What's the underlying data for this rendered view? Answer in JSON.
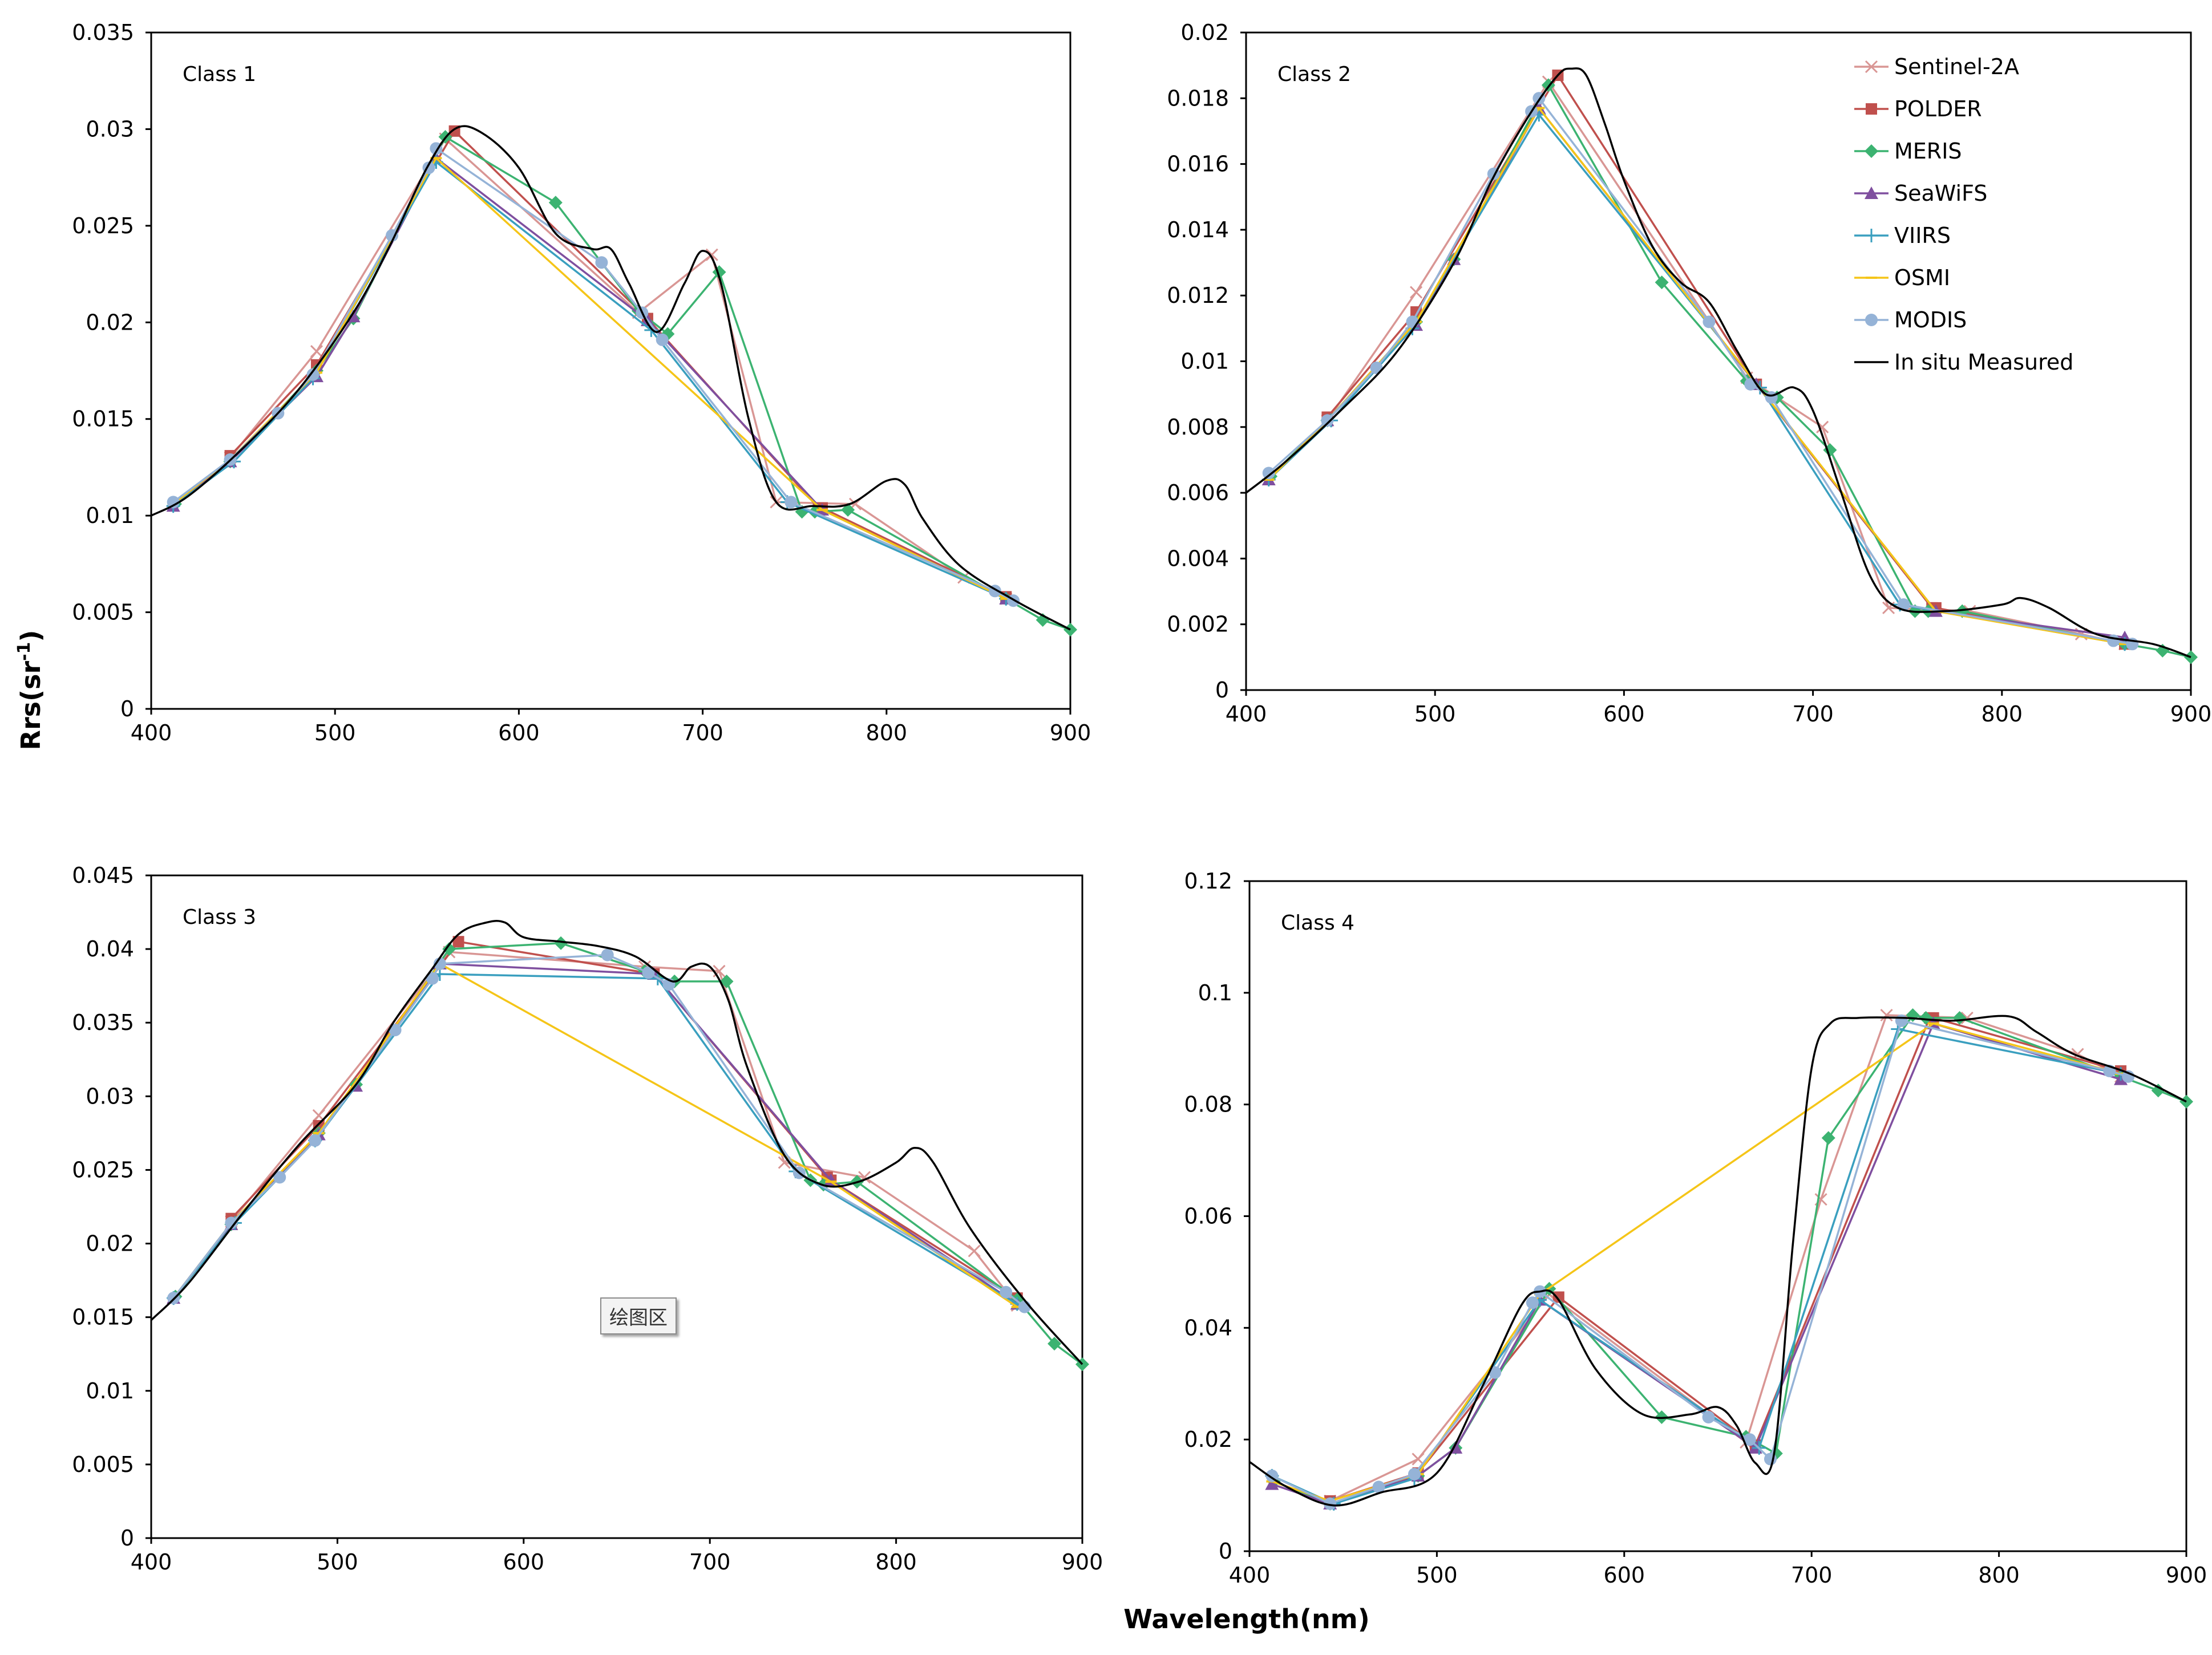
{
  "chart_data": [
    {
      "type": "line",
      "title": "Class 1",
      "xlim": [
        400,
        900
      ],
      "ylim": [
        0,
        0.035
      ],
      "xticks": [
        "400",
        "500",
        "600",
        "700",
        "800",
        "900"
      ],
      "yticks": [
        "0",
        "0.005",
        "0.01",
        "0.015",
        "0.02",
        "0.025",
        "0.03",
        "0.035"
      ],
      "series": [
        {
          "name": "Sentinel-2A",
          "x": [
            443,
            490,
            560,
            665,
            705,
            740,
            783,
            842,
            865
          ],
          "y": [
            0.013,
            0.0185,
            0.0295,
            0.0205,
            0.0235,
            0.0107,
            0.0106,
            0.0068,
            0.0057
          ]
        },
        {
          "name": "POLDER",
          "x": [
            443,
            490,
            565,
            670,
            763,
            765,
            865
          ],
          "y": [
            0.0131,
            0.0178,
            0.0299,
            0.0202,
            0.0104,
            0.0104,
            0.0058
          ]
        },
        {
          "name": "MERIS",
          "x": [
            413,
            443,
            490,
            510,
            560,
            620,
            665,
            681,
            709,
            754,
            761,
            779,
            865,
            885,
            900
          ],
          "y": [
            0.0106,
            0.0128,
            0.0175,
            0.0202,
            0.0296,
            0.0262,
            0.0206,
            0.0194,
            0.0226,
            0.0102,
            0.0102,
            0.0103,
            0.0057,
            0.0046,
            0.0041
          ]
        },
        {
          "name": "SeaWiFS",
          "x": [
            412,
            443,
            490,
            510,
            555,
            670,
            765,
            865
          ],
          "y": [
            0.0105,
            0.0128,
            0.0172,
            0.0203,
            0.0285,
            0.0201,
            0.0103,
            0.0057
          ]
        },
        {
          "name": "VIIRS",
          "x": [
            412,
            445,
            488,
            555,
            672,
            746,
            865
          ],
          "y": [
            0.0105,
            0.0128,
            0.0171,
            0.0283,
            0.0196,
            0.0107,
            0.0057
          ]
        },
        {
          "name": "OSMI",
          "x": [
            412,
            443,
            490,
            555,
            765,
            865
          ],
          "y": [
            0.0106,
            0.0129,
            0.0174,
            0.0285,
            0.0103,
            0.0057
          ]
        },
        {
          "name": "MODIS",
          "x": [
            412,
            443,
            469,
            488,
            531,
            551,
            555,
            645,
            667,
            678,
            748,
            859,
            869
          ],
          "y": [
            0.0107,
            0.0129,
            0.0153,
            0.0173,
            0.0245,
            0.028,
            0.029,
            0.0231,
            0.0205,
            0.0191,
            0.0107,
            0.0061,
            0.0056
          ]
        },
        {
          "name": "In situ Measured",
          "x": [
            400,
            420,
            450,
            480,
            510,
            530,
            550,
            565,
            580,
            600,
            620,
            640,
            650,
            660,
            675,
            690,
            700,
            710,
            725,
            740,
            760,
            780,
            800,
            810,
            820,
            840,
            870,
            900
          ],
          "y": [
            0.01,
            0.011,
            0.0135,
            0.0165,
            0.0205,
            0.024,
            0.028,
            0.03,
            0.0298,
            0.028,
            0.0246,
            0.0238,
            0.0238,
            0.022,
            0.0195,
            0.022,
            0.0237,
            0.022,
            0.015,
            0.0107,
            0.0105,
            0.0106,
            0.0118,
            0.0116,
            0.0098,
            0.0074,
            0.0056,
            0.0041
          ]
        }
      ]
    },
    {
      "type": "line",
      "title": "Class 2",
      "xlim": [
        400,
        900
      ],
      "ylim": [
        0,
        0.02
      ],
      "xticks": [
        "400",
        "500",
        "600",
        "700",
        "800",
        "900"
      ],
      "yticks": [
        "0",
        "0.002",
        "0.004",
        "0.006",
        "0.008",
        "0.01",
        "0.012",
        "0.014",
        "0.016",
        "0.018",
        "0.02"
      ],
      "series": [
        {
          "name": "Sentinel-2A",
          "x": [
            443,
            490,
            560,
            665,
            705,
            740,
            783,
            842,
            865
          ],
          "y": [
            0.0082,
            0.0121,
            0.0185,
            0.0095,
            0.008,
            0.0025,
            0.0024,
            0.0017,
            0.0014
          ]
        },
        {
          "name": "POLDER",
          "x": [
            443,
            490,
            565,
            670,
            763,
            765,
            865
          ],
          "y": [
            0.0083,
            0.0115,
            0.0187,
            0.0093,
            0.0025,
            0.0025,
            0.0014
          ]
        },
        {
          "name": "MERIS",
          "x": [
            413,
            443,
            490,
            510,
            560,
            620,
            665,
            681,
            709,
            754,
            761,
            779,
            865,
            885,
            900
          ],
          "y": [
            0.0065,
            0.0082,
            0.0112,
            0.0131,
            0.0184,
            0.0124,
            0.0094,
            0.0089,
            0.0073,
            0.0024,
            0.0024,
            0.0024,
            0.0014,
            0.0012,
            0.001
          ]
        },
        {
          "name": "SeaWiFS",
          "x": [
            412,
            443,
            490,
            510,
            555,
            670,
            765,
            865
          ],
          "y": [
            0.0064,
            0.0082,
            0.0111,
            0.0131,
            0.0177,
            0.0093,
            0.0024,
            0.0016
          ]
        },
        {
          "name": "VIIRS",
          "x": [
            412,
            445,
            488,
            555,
            672,
            746,
            865
          ],
          "y": [
            0.0064,
            0.0082,
            0.011,
            0.0175,
            0.0092,
            0.0026,
            0.0014
          ]
        },
        {
          "name": "OSMI",
          "x": [
            412,
            443,
            490,
            555,
            765,
            865
          ],
          "y": [
            0.0064,
            0.0082,
            0.0112,
            0.0177,
            0.0024,
            0.0014
          ]
        },
        {
          "name": "MODIS",
          "x": [
            412,
            443,
            469,
            488,
            531,
            551,
            555,
            645,
            667,
            678,
            748,
            859,
            869
          ],
          "y": [
            0.0066,
            0.0082,
            0.0098,
            0.0112,
            0.0157,
            0.0176,
            0.018,
            0.0112,
            0.0093,
            0.0089,
            0.0026,
            0.0015,
            0.0014
          ]
        },
        {
          "name": "In situ Measured",
          "x": [
            400,
            420,
            450,
            480,
            510,
            530,
            550,
            565,
            572,
            580,
            590,
            600,
            615,
            630,
            645,
            660,
            675,
            690,
            700,
            715,
            730,
            745,
            770,
            800,
            810,
            825,
            850,
            880,
            900
          ],
          "y": [
            0.006,
            0.0069,
            0.0085,
            0.0103,
            0.013,
            0.0155,
            0.0175,
            0.0187,
            0.0189,
            0.0187,
            0.0172,
            0.0155,
            0.0135,
            0.0124,
            0.0118,
            0.0103,
            0.009,
            0.0092,
            0.0085,
            0.006,
            0.0035,
            0.0025,
            0.0024,
            0.0026,
            0.0028,
            0.0025,
            0.0017,
            0.0014,
            0.001
          ]
        }
      ]
    },
    {
      "type": "line",
      "title": "Class 3",
      "xlim": [
        400,
        900
      ],
      "ylim": [
        0,
        0.045
      ],
      "xticks": [
        "400",
        "500",
        "600",
        "700",
        "800",
        "900"
      ],
      "yticks": [
        "0",
        "0.005",
        "0.01",
        "0.015",
        "0.02",
        "0.025",
        "0.03",
        "0.035",
        "0.04",
        "0.045"
      ],
      "series": [
        {
          "name": "Sentinel-2A",
          "x": [
            443,
            490,
            560,
            665,
            705,
            740,
            783,
            842,
            865
          ],
          "y": [
            0.0215,
            0.0287,
            0.0398,
            0.0388,
            0.0385,
            0.0255,
            0.0245,
            0.0195,
            0.0158
          ]
        },
        {
          "name": "POLDER",
          "x": [
            443,
            490,
            565,
            670,
            763,
            765,
            865
          ],
          "y": [
            0.0217,
            0.028,
            0.0405,
            0.0383,
            0.0245,
            0.0243,
            0.0163
          ]
        },
        {
          "name": "MERIS",
          "x": [
            413,
            443,
            490,
            510,
            560,
            620,
            665,
            681,
            709,
            754,
            761,
            779,
            865,
            885,
            900
          ],
          "y": [
            0.0164,
            0.0213,
            0.0275,
            0.0308,
            0.04,
            0.0404,
            0.0385,
            0.0378,
            0.0378,
            0.0243,
            0.024,
            0.0242,
            0.0162,
            0.0132,
            0.0118
          ]
        },
        {
          "name": "SeaWiFS",
          "x": [
            412,
            443,
            490,
            510,
            555,
            670,
            765,
            865
          ],
          "y": [
            0.0163,
            0.0213,
            0.0274,
            0.0307,
            0.039,
            0.0383,
            0.0243,
            0.0159
          ]
        },
        {
          "name": "VIIRS",
          "x": [
            412,
            445,
            488,
            555,
            672,
            746,
            865
          ],
          "y": [
            0.0163,
            0.0214,
            0.027,
            0.0383,
            0.038,
            0.0249,
            0.0159
          ]
        },
        {
          "name": "OSMI",
          "x": [
            412,
            443,
            490,
            555,
            765,
            865
          ],
          "y": [
            0.0163,
            0.0214,
            0.0275,
            0.039,
            0.0242,
            0.0157
          ]
        },
        {
          "name": "MODIS",
          "x": [
            412,
            443,
            469,
            488,
            531,
            551,
            555,
            645,
            667,
            678,
            748,
            859,
            869
          ],
          "y": [
            0.0163,
            0.0214,
            0.0245,
            0.027,
            0.0345,
            0.038,
            0.039,
            0.0396,
            0.0384,
            0.0376,
            0.0248,
            0.0167,
            0.0157
          ]
        },
        {
          "name": "In situ Measured",
          "x": [
            400,
            420,
            450,
            480,
            510,
            530,
            550,
            565,
            580,
            590,
            600,
            620,
            640,
            660,
            680,
            690,
            700,
            710,
            720,
            740,
            760,
            780,
            800,
            810,
            820,
            840,
            870,
            900
          ],
          "y": [
            0.0148,
            0.0173,
            0.0222,
            0.0268,
            0.0308,
            0.035,
            0.0385,
            0.041,
            0.0418,
            0.0418,
            0.0408,
            0.0405,
            0.0402,
            0.0395,
            0.0378,
            0.0388,
            0.0388,
            0.0365,
            0.032,
            0.026,
            0.024,
            0.0242,
            0.0255,
            0.0265,
            0.0255,
            0.021,
            0.016,
            0.0118
          ]
        }
      ]
    },
    {
      "type": "line",
      "title": "Class 4",
      "xlim": [
        400,
        900
      ],
      "ylim": [
        0,
        0.12
      ],
      "xticks": [
        "400",
        "500",
        "600",
        "700",
        "800",
        "900"
      ],
      "yticks": [
        "0",
        "0.02",
        "0.04",
        "0.06",
        "0.08",
        "0.1",
        "0.12"
      ],
      "series": [
        {
          "name": "Sentinel-2A",
          "x": [
            443,
            490,
            560,
            665,
            705,
            740,
            783,
            842,
            865
          ],
          "y": [
            0.009,
            0.0165,
            0.046,
            0.0195,
            0.063,
            0.096,
            0.0955,
            0.089,
            0.085
          ]
        },
        {
          "name": "POLDER",
          "x": [
            443,
            490,
            565,
            670,
            763,
            765,
            865
          ],
          "y": [
            0.009,
            0.014,
            0.0455,
            0.019,
            0.0955,
            0.0955,
            0.086
          ]
        },
        {
          "name": "MERIS",
          "x": [
            413,
            443,
            490,
            510,
            560,
            620,
            665,
            681,
            709,
            754,
            761,
            779,
            865,
            885,
            900
          ],
          "y": [
            0.0125,
            0.0085,
            0.0135,
            0.0185,
            0.047,
            0.024,
            0.0205,
            0.0175,
            0.074,
            0.096,
            0.0955,
            0.0955,
            0.085,
            0.0825,
            0.0805
          ]
        },
        {
          "name": "SeaWiFS",
          "x": [
            412,
            443,
            490,
            510,
            555,
            670,
            765,
            865
          ],
          "y": [
            0.012,
            0.0085,
            0.0135,
            0.0185,
            0.045,
            0.0185,
            0.0945,
            0.0845
          ]
        },
        {
          "name": "VIIRS",
          "x": [
            412,
            445,
            488,
            555,
            672,
            746,
            865
          ],
          "y": [
            0.0135,
            0.0085,
            0.013,
            0.045,
            0.0185,
            0.0935,
            0.0855
          ]
        },
        {
          "name": "OSMI",
          "x": [
            412,
            443,
            490,
            555,
            765,
            865
          ],
          "y": [
            0.0125,
            0.009,
            0.0138,
            0.046,
            0.0945,
            0.0855
          ]
        },
        {
          "name": "MODIS",
          "x": [
            412,
            443,
            469,
            488,
            531,
            551,
            555,
            645,
            667,
            678,
            748,
            859,
            869
          ],
          "y": [
            0.0135,
            0.0085,
            0.0115,
            0.0138,
            0.032,
            0.0445,
            0.0465,
            0.024,
            0.02,
            0.0165,
            0.095,
            0.086,
            0.085
          ]
        },
        {
          "name": "In situ Measured",
          "x": [
            400,
            420,
            445,
            470,
            500,
            525,
            545,
            555,
            565,
            585,
            610,
            635,
            650,
            660,
            670,
            680,
            690,
            700,
            710,
            725,
            750,
            775,
            805,
            820,
            840,
            870,
            900
          ],
          "y": [
            0.016,
            0.0115,
            0.0082,
            0.0105,
            0.014,
            0.03,
            0.044,
            0.0465,
            0.045,
            0.0325,
            0.0245,
            0.0245,
            0.0258,
            0.0225,
            0.0158,
            0.0175,
            0.055,
            0.0865,
            0.0945,
            0.0955,
            0.0955,
            0.095,
            0.0958,
            0.093,
            0.089,
            0.0855,
            0.0805
          ]
        }
      ]
    }
  ],
  "legend": [
    "Sentinel-2A",
    "POLDER",
    "MERIS",
    "SeaWiFS",
    "VIIRS",
    "OSMI",
    "MODIS",
    "In situ Measured"
  ],
  "series_colors": {
    "Sentinel-2A": "#d99694",
    "POLDER": "#c0504d",
    "MERIS": "#3cb371",
    "SeaWiFS": "#7f4f9f",
    "VIIRS": "#3a9fbf",
    "OSMI": "#f5c518",
    "MODIS": "#95b3d7",
    "In situ Measured": "#000000"
  },
  "series_markers": {
    "Sentinel-2A": "x",
    "POLDER": "square",
    "MERIS": "diamond",
    "SeaWiFS": "triangle",
    "VIIRS": "plus",
    "OSMI": "dash",
    "MODIS": "circle",
    "In situ Measured": "none"
  },
  "y_axis_label": "Rrs(sr",
  "y_axis_label_sup": "-1",
  "y_axis_label_end": ")",
  "x_axis_label": "Wavelength(nm)",
  "plot_area_tag": "绘图区"
}
